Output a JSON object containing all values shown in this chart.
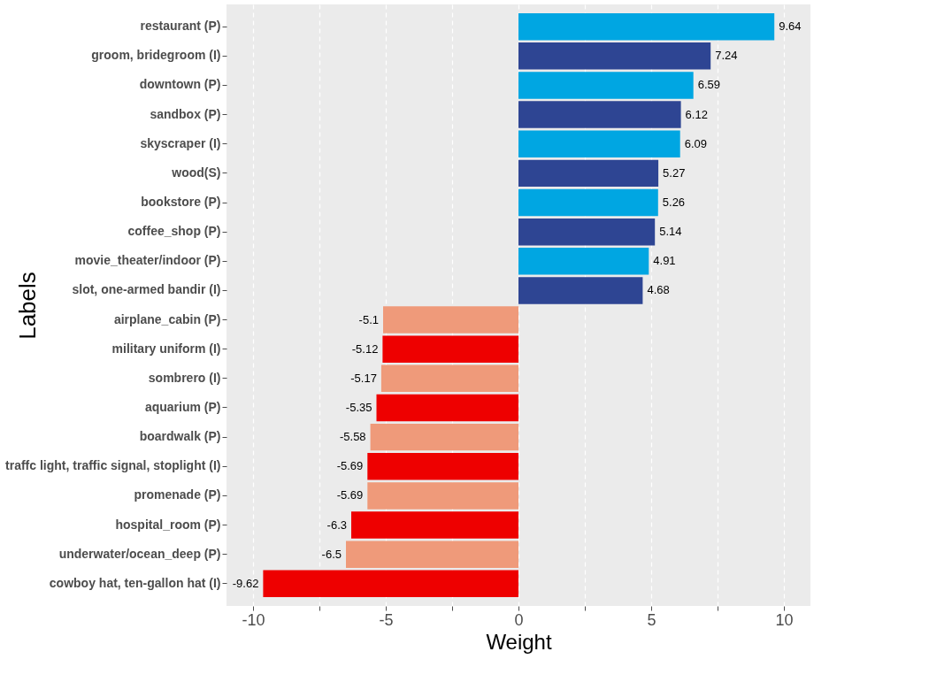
{
  "chart_data": {
    "type": "bar",
    "orientation": "horizontal",
    "xlabel": "Weight",
    "ylabel": "Labels",
    "categories": [
      "restaurant (P)",
      "groom, bridegroom (I)",
      "downtown (P)",
      "sandbox (P)",
      "skyscraper (I)",
      "wood(S)",
      "bookstore (P)",
      "coffee_shop (P)",
      "movie_theater/indoor (P)",
      "slot, one-armed bandir (I)",
      "airplane_cabin (P)",
      "military uniform (I)",
      "sombrero (I)",
      "aquarium (P)",
      "boardwalk (P)",
      "traffc light, traffic signal, stoplight (I)",
      "promenade (P)",
      "hospital_room (P)",
      "underwater/ocean_deep (P)",
      "cowboy hat, ten-gallon hat (I)"
    ],
    "values": [
      9.64,
      7.24,
      6.59,
      6.12,
      6.09,
      5.27,
      5.26,
      5.14,
      4.91,
      4.68,
      -5.1,
      -5.12,
      -5.17,
      -5.35,
      -5.58,
      -5.69,
      -5.69,
      -6.3,
      -6.5,
      -9.62
    ],
    "colors": [
      "#00a6e2",
      "#2e4593",
      "#00a6e2",
      "#2e4593",
      "#00a6e2",
      "#2e4593",
      "#00a6e2",
      "#2e4593",
      "#00a6e2",
      "#2e4593",
      "#ef9a7a",
      "#ee0000",
      "#ef9a7a",
      "#ee0000",
      "#ef9a7a",
      "#ee0000",
      "#ef9a7a",
      "#ee0000",
      "#ef9a7a",
      "#ee0000"
    ],
    "xlim": [
      -11,
      11
    ],
    "xticks": [
      -10,
      {
        "value": -7.5,
        "label": null
      },
      -5,
      {
        "value": -2.5,
        "label": null
      },
      0,
      {
        "value": 2.5,
        "label": null
      },
      5,
      {
        "value": 7.5,
        "label": null
      },
      10
    ],
    "data_labels": true,
    "grid": "x"
  }
}
